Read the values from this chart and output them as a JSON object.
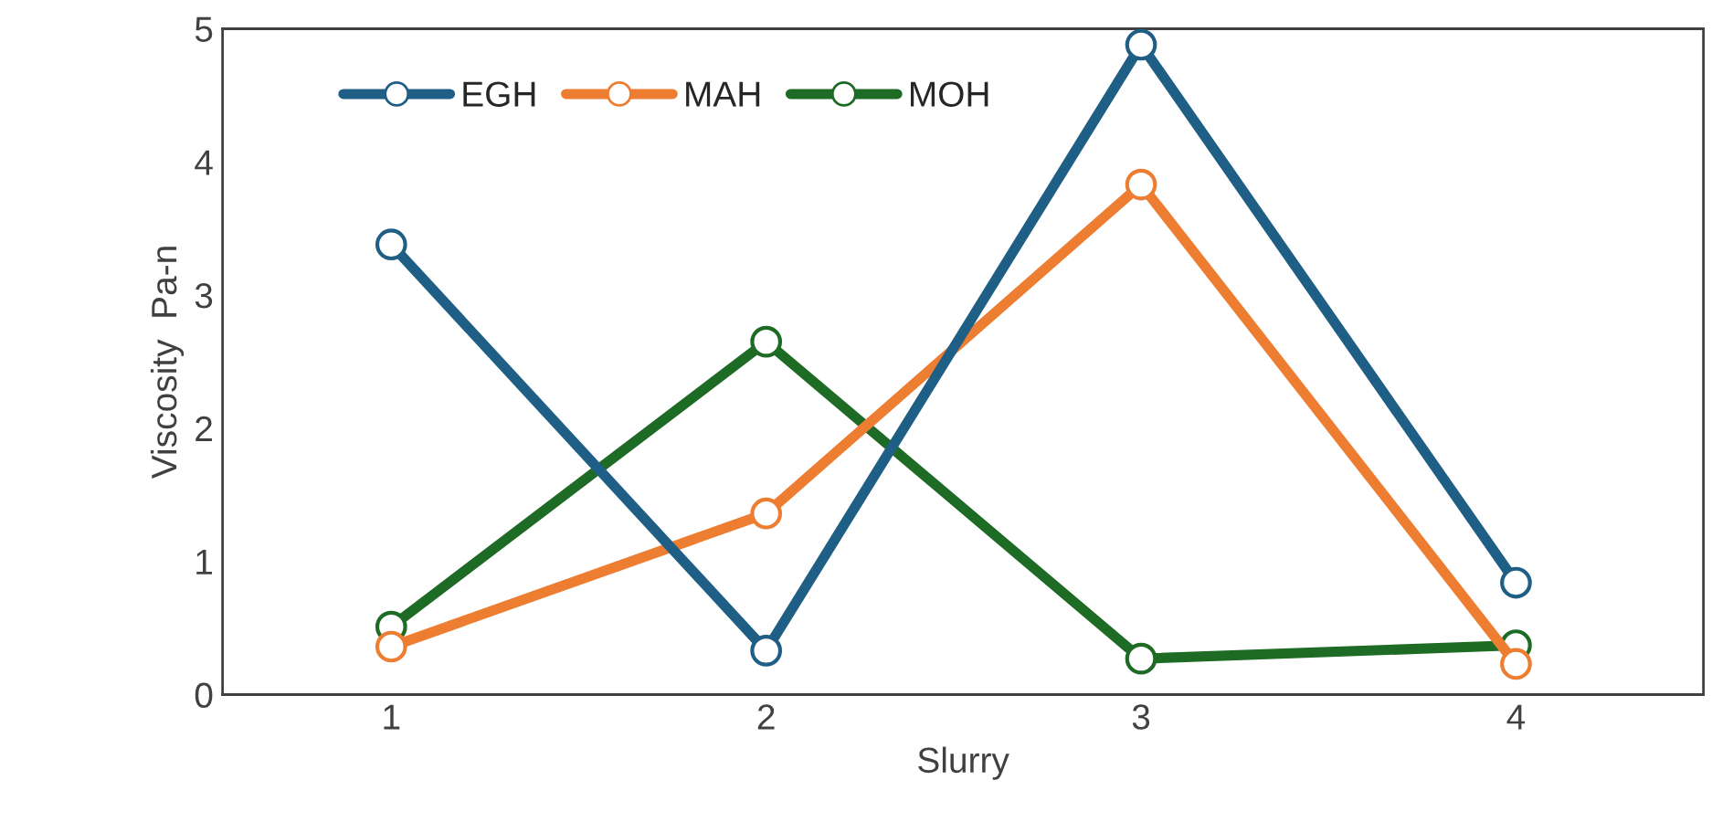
{
  "chart_data": {
    "type": "line",
    "xlabel": "Slurry",
    "ylabel": "Viscosity  Pa-n",
    "categories": [
      "1",
      "2",
      "3",
      "4"
    ],
    "series": [
      {
        "name": "EGH",
        "color": "#1f5f86",
        "values": [
          3.38,
          0.33,
          4.88,
          0.84
        ]
      },
      {
        "name": "MAH",
        "color": "#ed7d31",
        "values": [
          0.36,
          1.36,
          3.83,
          0.23
        ]
      },
      {
        "name": "MOH",
        "color": "#1e6b25",
        "values": [
          0.51,
          2.65,
          0.27,
          0.37
        ]
      }
    ],
    "ylim": [
      0,
      5
    ],
    "yticks": [
      0,
      1,
      2,
      3,
      4,
      5
    ],
    "grid": false,
    "legend": "top left",
    "marker": "circle",
    "line_style": "solid"
  }
}
